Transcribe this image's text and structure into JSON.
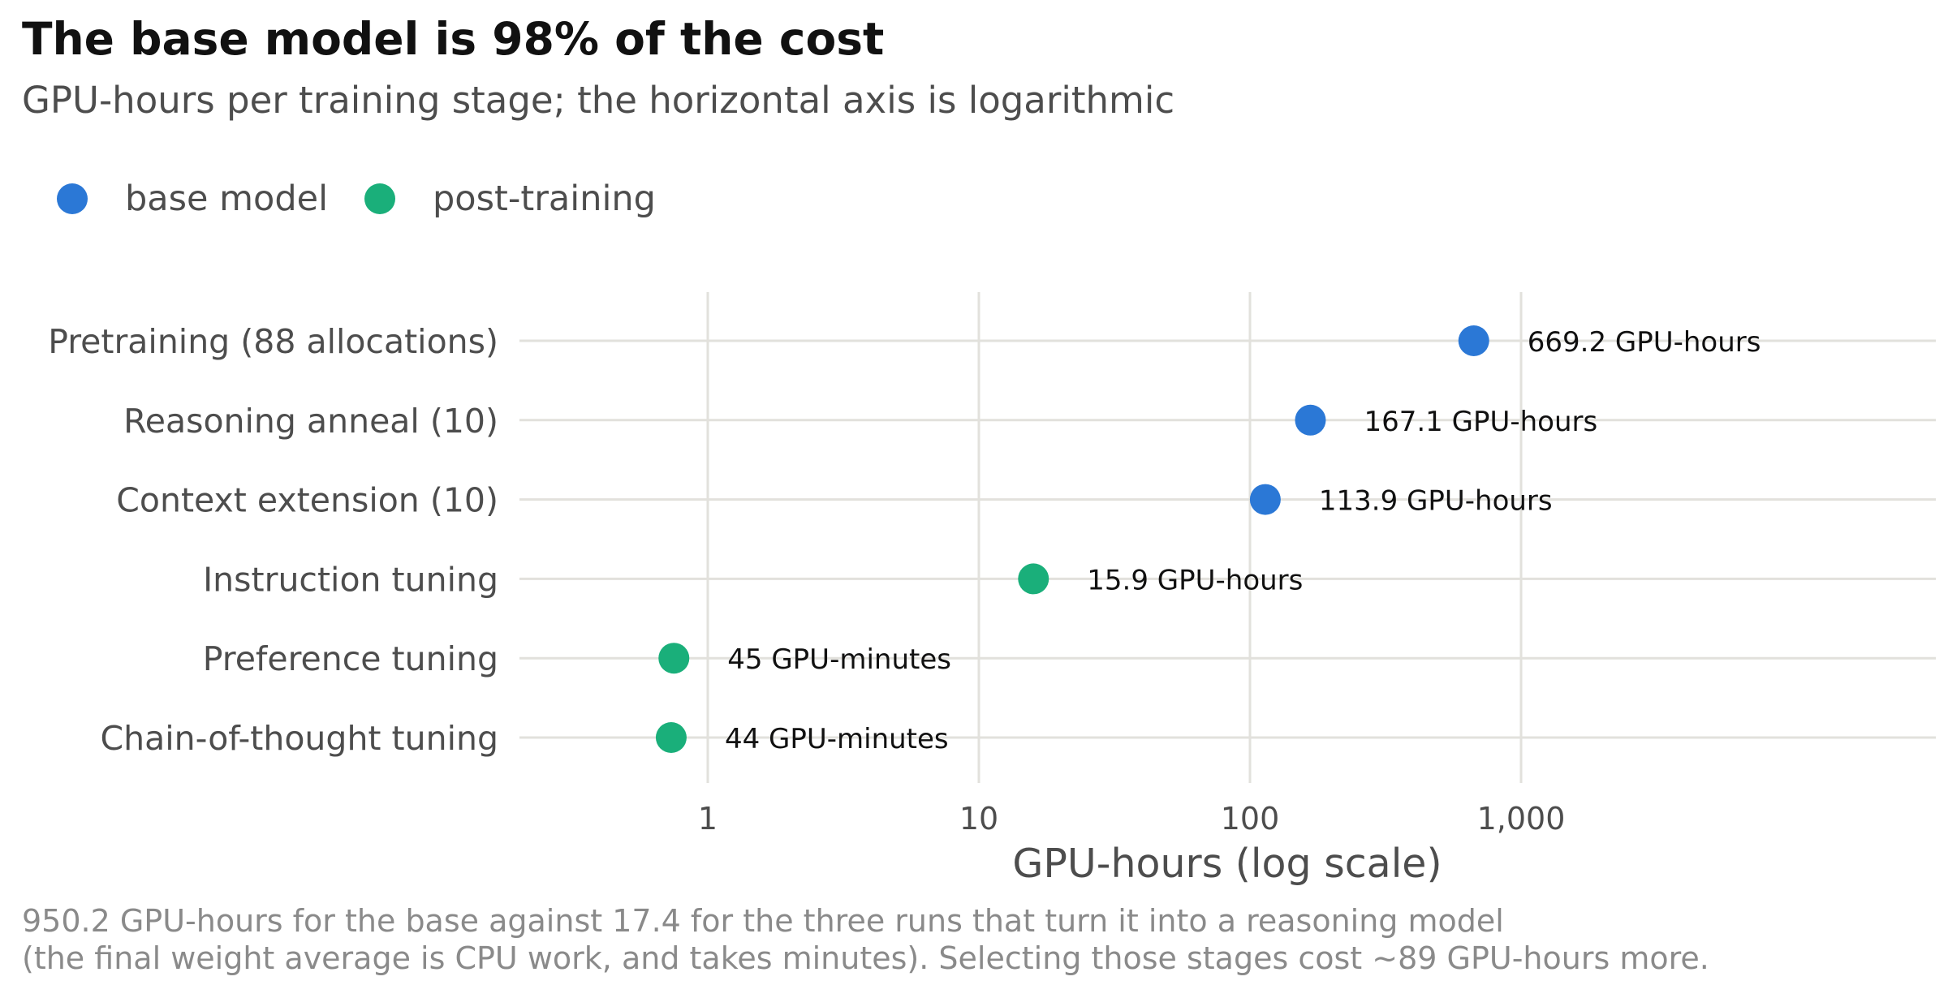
{
  "chart_data": {
    "type": "scatter",
    "title": "The base model is 98% of the cost",
    "subtitle": "GPU-hours per training stage; the horizontal axis is logarithmic",
    "xlabel": "GPU-hours (log scale)",
    "ylabel": "",
    "x_scale": "log",
    "xlim": [
      0.2,
      60000
    ],
    "x_ticks": [
      1,
      10,
      100,
      1000
    ],
    "x_tick_labels": [
      "1",
      "10",
      "100",
      "1,000"
    ],
    "grid": true,
    "legend_position": "top-left",
    "series": [
      {
        "name": "base model",
        "color": "#2b78d6"
      },
      {
        "name": "post-training",
        "color": "#1aaf7a"
      }
    ],
    "categories": [
      "Pretraining (88 allocations)",
      "Reasoning anneal (10)",
      "Context extension (10)",
      "Instruction tuning",
      "Preference tuning",
      "Chain-of-thought tuning"
    ],
    "points": [
      {
        "category": "Pretraining (88 allocations)",
        "value": 669.2,
        "series": "base model",
        "label": "669.2 GPU-hours"
      },
      {
        "category": "Reasoning anneal (10)",
        "value": 167.1,
        "series": "base model",
        "label": "167.1 GPU-hours"
      },
      {
        "category": "Context extension (10)",
        "value": 113.9,
        "series": "base model",
        "label": "113.9 GPU-hours"
      },
      {
        "category": "Instruction tuning",
        "value": 15.9,
        "series": "post-training",
        "label": "15.9 GPU-hours"
      },
      {
        "category": "Preference tuning",
        "value": 0.75,
        "series": "post-training",
        "label": "45 GPU-minutes"
      },
      {
        "category": "Chain-of-thought tuning",
        "value": 0.733,
        "series": "post-training",
        "label": "44 GPU-minutes"
      }
    ],
    "caption_lines": [
      "950.2 GPU-hours for the base against 17.4 for the three runs that turn it into a reasoning model",
      "(the final weight average is CPU work, and takes minutes). Selecting those stages cost ~89 GPU-hours more."
    ]
  },
  "colors": {
    "gridline": "#e2e1dc",
    "text_dark": "#111111",
    "text_mid": "#4d4d4d",
    "text_light": "#8a8a8a"
  }
}
